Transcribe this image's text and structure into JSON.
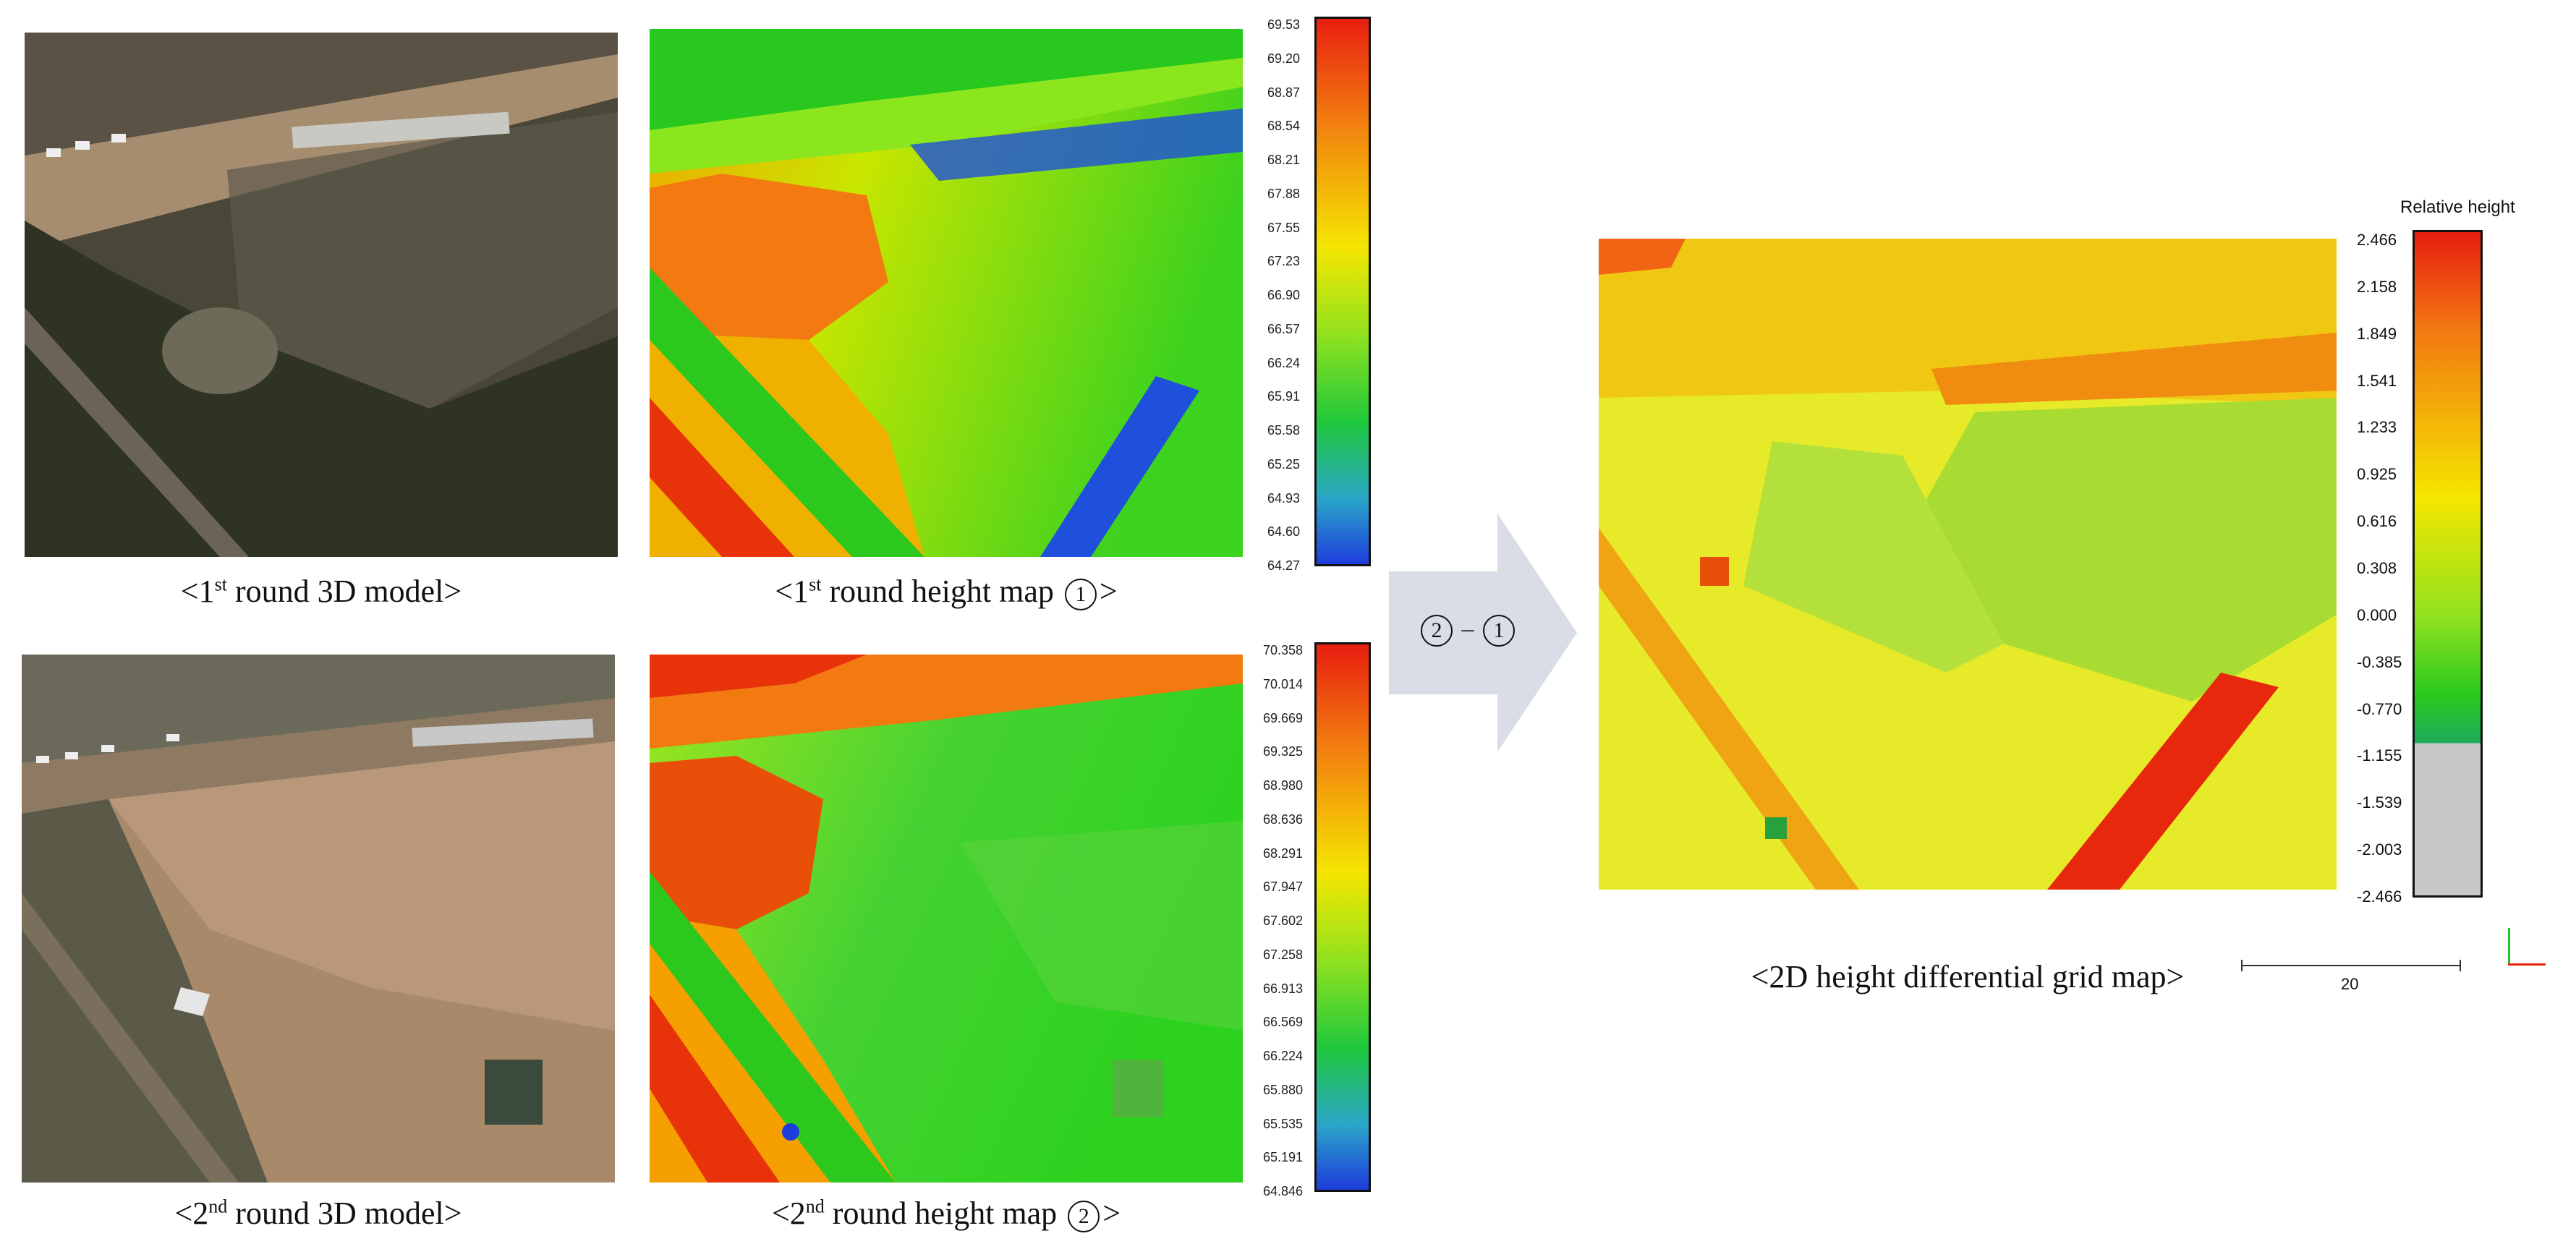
{
  "captions": {
    "r1_model_a": "<1",
    "r1_model_sup": "st",
    "r1_model_b": " round 3D model>",
    "r1_height_a": "<1",
    "r1_height_sup": "st",
    "r1_height_b": " round height map ",
    "r1_height_circle": "1",
    "r1_height_c": ">",
    "r2_model_a": "<2",
    "r2_model_sup": "nd",
    "r2_model_b": " round 3D model>",
    "r2_height_a": "<2",
    "r2_height_sup": "nd",
    "r2_height_b": " round height map ",
    "r2_height_circle": "2",
    "r2_height_c": ">",
    "diff_map": "<2D height differential grid map>"
  },
  "arrow": {
    "left_circle": "2",
    "minus": "–",
    "right_circle": "1",
    "fill": "#d9dee6"
  },
  "colorbar1": {
    "ticks": [
      "69.53",
      "69.20",
      "68.87",
      "68.54",
      "68.21",
      "67.88",
      "67.55",
      "67.23",
      "66.90",
      "66.57",
      "66.24",
      "65.91",
      "65.58",
      "65.25",
      "64.93",
      "64.60",
      "64.27"
    ]
  },
  "colorbar2": {
    "ticks": [
      "70.358",
      "70.014",
      "69.669",
      "69.325",
      "68.980",
      "68.636",
      "68.291",
      "67.947",
      "67.602",
      "67.258",
      "66.913",
      "66.569",
      "66.224",
      "65.880",
      "65.535",
      "65.191",
      "64.846"
    ]
  },
  "colorbar3": {
    "title": "Relative height",
    "ticks": [
      "2.466",
      "2.158",
      "1.849",
      "1.541",
      "1.233",
      "0.925",
      "0.616",
      "0.308",
      "0.000",
      "-0.385",
      "-0.770",
      "-1.155",
      "-1.539",
      "-2.003",
      "-2.466"
    ],
    "gray_below": "-1.539"
  },
  "scale_bar": {
    "label": "20"
  },
  "colors": {
    "high": "#e81e10",
    "mid": "#f5e600",
    "mid2": "#32d21e",
    "low": "#1e3cdc",
    "gray": "#c8c8c8"
  }
}
